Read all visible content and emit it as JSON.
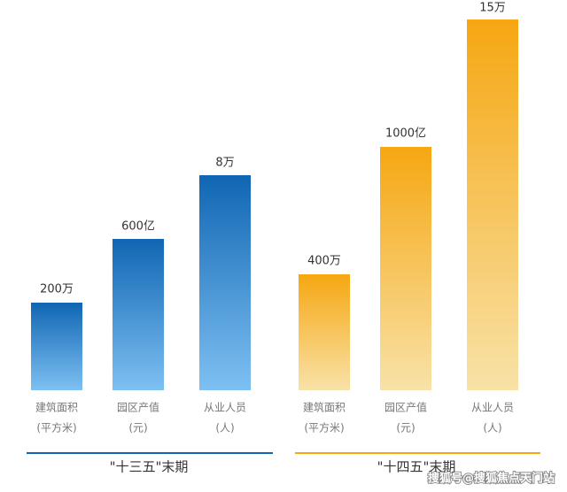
{
  "groups": [
    {
      "label": "\"十三五\"末期",
      "items": [
        {
          "value_label": "200万",
          "name": "建筑面积",
          "unit": "(平方米)"
        },
        {
          "value_label": "600亿",
          "name": "园区产值",
          "unit": "(元)"
        },
        {
          "value_label": "8万",
          "name": "从业人员",
          "unit": "(人)"
        }
      ]
    },
    {
      "label": "\"十四五\"末期",
      "items": [
        {
          "value_label": "400万",
          "name": "建筑面积",
          "unit": "(平方米)"
        },
        {
          "value_label": "1000亿",
          "name": "园区产值",
          "unit": "(元)"
        },
        {
          "value_label": "15万",
          "name": "从业人员",
          "unit": "(人)"
        }
      ]
    }
  ],
  "watermark": "搜狐号@搜狐焦点天门站"
}
